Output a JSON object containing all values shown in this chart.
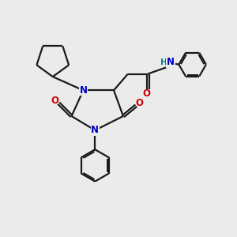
{
  "bg_color": "#ebebeb",
  "bond_color": "#1a1a1a",
  "n_color": "#0000cc",
  "o_color": "#cc0000",
  "h_color": "#008080",
  "line_width": 1.6,
  "font_size_atom": 8.5,
  "fig_width": 3.0,
  "fig_height": 3.0,
  "dpi": 100,
  "xlim": [
    0,
    10
  ],
  "ylim": [
    0,
    10
  ]
}
